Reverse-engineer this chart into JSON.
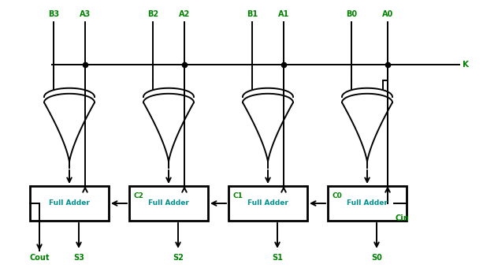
{
  "bg_color": "#ffffff",
  "line_color": "#000000",
  "text_color": "#008000",
  "adder_text_color": "#009090",
  "k_label": "K",
  "cin_label": "Cin",
  "cout_label": "Cout",
  "carry_labels": [
    "C2",
    "C1",
    "C0"
  ],
  "sum_labels": [
    "S3",
    "S2",
    "S1",
    "S0"
  ],
  "input_labels_B": [
    "B3",
    "B2",
    "B1",
    "B0"
  ],
  "input_labels_A": [
    "A3",
    "A2",
    "A1",
    "A0"
  ],
  "adder_label": "Full Adder",
  "figsize": [
    6.13,
    3.4
  ],
  "dpi": 100
}
